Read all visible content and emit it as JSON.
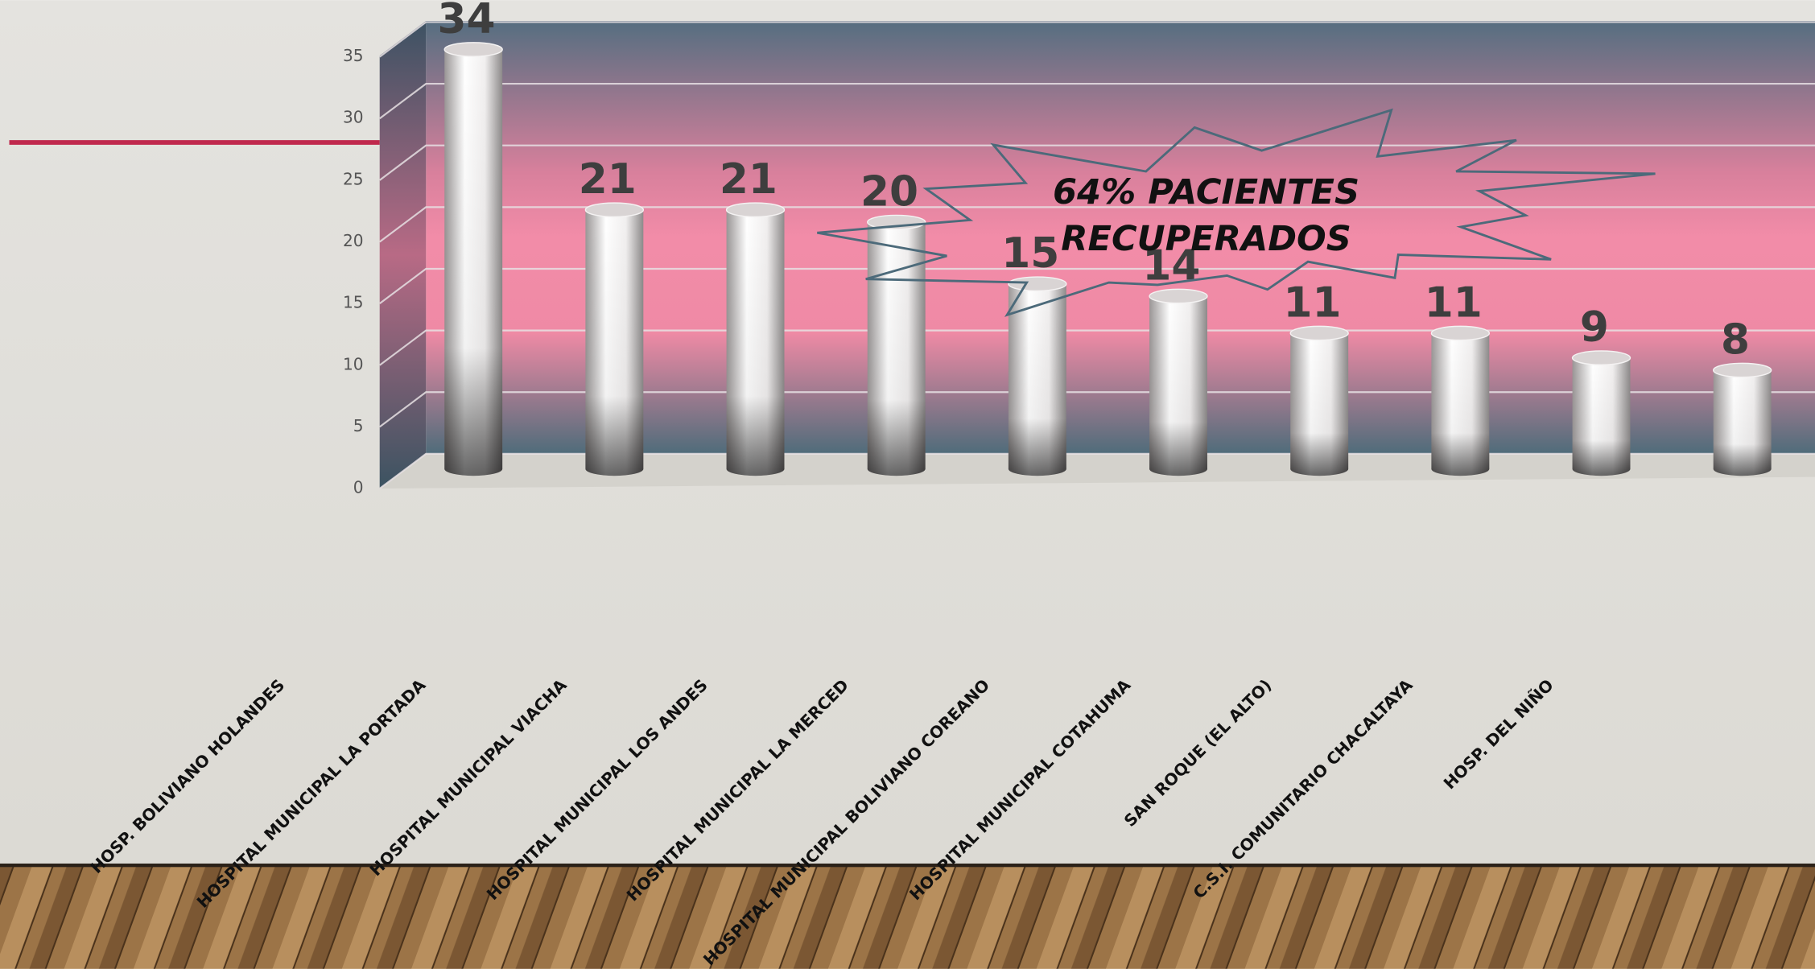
{
  "chart_data": {
    "type": "bar",
    "categories": [
      "HOSP. BOLIVIANO HOLANDES",
      "HOSPITAL MUNICIPAL LA PORTADA",
      "HOSPITAL MUNICIPAL VIACHA",
      "HOSPITAL MUNICIPAL LOS ANDES",
      "HOSPITAL MUNICIPAL LA MERCED",
      "HOSPITAL MUNICIPAL BOLIVIANO COREANO",
      "HOSPITAL MUNICIPAL COTAHUMA",
      "SAN ROQUE (EL ALTO)",
      "C.S.I. COMUNITARIO CHACALTAYA",
      "HOSP.  DEL NIÑO"
    ],
    "values": [
      34,
      21,
      21,
      20,
      15,
      14,
      11,
      11,
      9,
      8
    ],
    "ylim": [
      0,
      35
    ],
    "yticks": [
      0,
      5,
      10,
      15,
      20,
      25,
      30,
      35
    ],
    "grid": true,
    "annotation": [
      "64% PACIENTES",
      "RECUPERADOS"
    ]
  }
}
